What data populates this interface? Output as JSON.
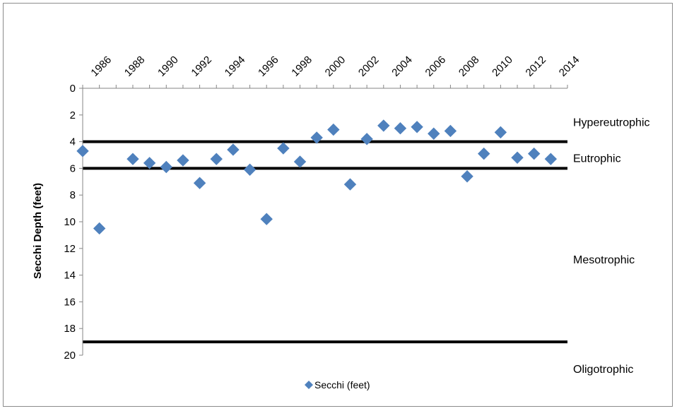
{
  "chart_data": {
    "type": "scatter",
    "title": "",
    "xlabel": "",
    "ylabel": "Secchi Depth (feet)",
    "x_axis_position": "top",
    "y_reversed": true,
    "xlim": [
      1985,
      2014
    ],
    "ylim": [
      0,
      20
    ],
    "x_ticks": [
      1986,
      1988,
      1990,
      1992,
      1994,
      1996,
      1998,
      2000,
      2002,
      2004,
      2006,
      2008,
      2010,
      2012,
      2014
    ],
    "y_ticks": [
      0,
      2,
      4,
      6,
      8,
      10,
      12,
      14,
      16,
      18,
      20
    ],
    "grid": false,
    "legend_position": "bottom",
    "series": [
      {
        "name": "Secchi (feet)",
        "color": "#4f81bd",
        "marker": "diamond",
        "points": [
          [
            1985,
            4.7
          ],
          [
            1986,
            10.5
          ],
          [
            1988,
            5.3
          ],
          [
            1989,
            5.6
          ],
          [
            1990,
            5.9
          ],
          [
            1991,
            5.4
          ],
          [
            1992,
            7.1
          ],
          [
            1993,
            5.3
          ],
          [
            1994,
            4.6
          ],
          [
            1995,
            6.1
          ],
          [
            1996,
            9.8
          ],
          [
            1997,
            4.5
          ],
          [
            1998,
            5.5
          ],
          [
            1999,
            3.7
          ],
          [
            2000,
            3.1
          ],
          [
            2001,
            7.2
          ],
          [
            2002,
            3.8
          ],
          [
            2003,
            2.8
          ],
          [
            2004,
            3.0
          ],
          [
            2005,
            2.9
          ],
          [
            2006,
            3.4
          ],
          [
            2007,
            3.2
          ],
          [
            2008,
            6.6
          ],
          [
            2009,
            4.9
          ],
          [
            2010,
            3.3
          ],
          [
            2011,
            5.2
          ],
          [
            2012,
            4.9
          ],
          [
            2013,
            5.3
          ]
        ]
      }
    ],
    "threshold_lines": [
      {
        "depth": 4,
        "color": "#000000"
      },
      {
        "depth": 6,
        "color": "#000000"
      },
      {
        "depth": 19,
        "color": "#000000"
      }
    ],
    "zone_labels": [
      {
        "text": "Hypereutrophic",
        "depth": 2.5
      },
      {
        "text": "Eutrophic",
        "depth": 5.2
      },
      {
        "text": "Mesotrophic",
        "depth": 12.8
      },
      {
        "text": "Oligotrophic",
        "depth": 21.0
      }
    ]
  }
}
